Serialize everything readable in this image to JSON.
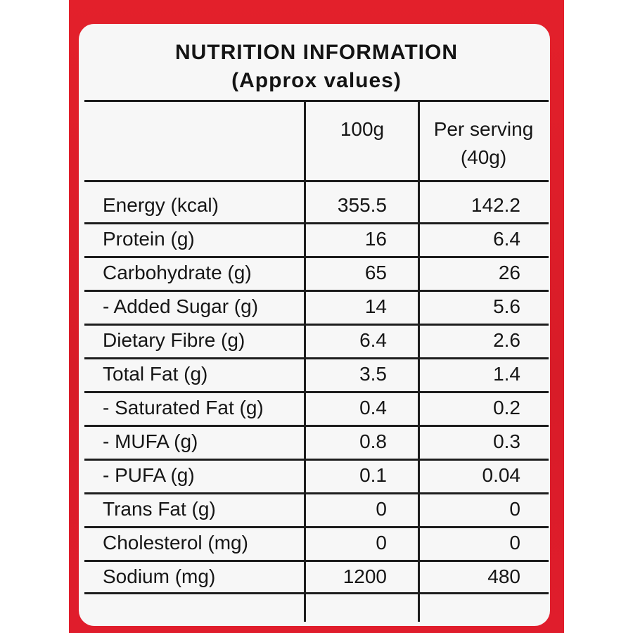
{
  "header": {
    "title": "NUTRITION INFORMATION",
    "subtitle": "(Approx values)"
  },
  "columns": {
    "col1": "100g",
    "col2_line1": "Per serving",
    "col2_line2": "(40g)"
  },
  "rows": [
    {
      "name": "Energy (kcal)",
      "per100g": "355.5",
      "perServing": "142.2"
    },
    {
      "name": "Protein (g)",
      "per100g": "16",
      "perServing": "6.4"
    },
    {
      "name": "Carbohydrate (g)",
      "per100g": "65",
      "perServing": "26"
    },
    {
      "name": "- Added Sugar (g)",
      "per100g": "14",
      "perServing": "5.6"
    },
    {
      "name": "Dietary Fibre (g)",
      "per100g": "6.4",
      "perServing": "2.6"
    },
    {
      "name": "Total Fat (g)",
      "per100g": "3.5",
      "perServing": "1.4"
    },
    {
      "name": "- Saturated Fat (g)",
      "per100g": "0.4",
      "perServing": "0.2"
    },
    {
      "name": "- MUFA (g)",
      "per100g": "0.8",
      "perServing": "0.3"
    },
    {
      "name": "- PUFA (g)",
      "per100g": "0.1",
      "perServing": "0.04"
    },
    {
      "name": "Trans Fat (g)",
      "per100g": "0",
      "perServing": "0"
    },
    {
      "name": "Cholesterol (mg)",
      "per100g": "0",
      "perServing": "0"
    },
    {
      "name": "Sodium (mg)",
      "per100g": "1200",
      "perServing": "480"
    }
  ],
  "colors": {
    "packaging": "#e3202b",
    "label": "#f7f7f7",
    "text": "#161616"
  }
}
